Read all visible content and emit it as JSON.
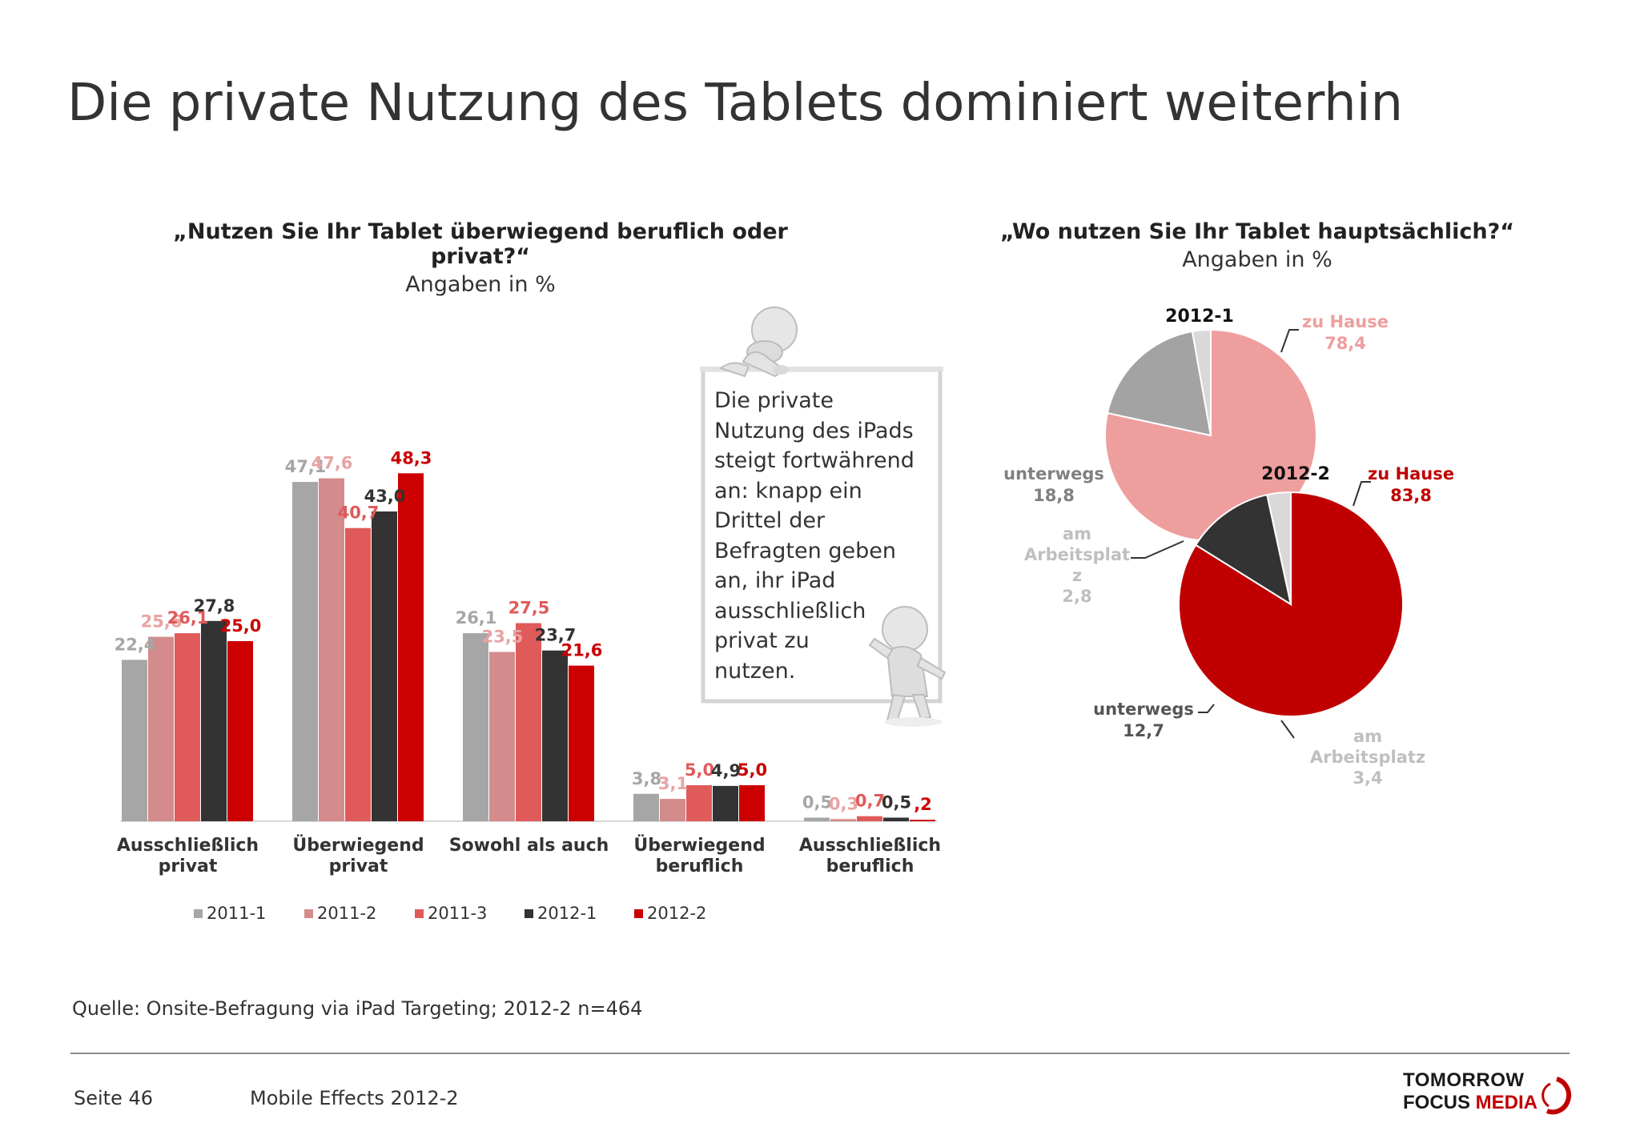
{
  "title": "Die private Nutzung des Tablets dominiert weiterhin",
  "colors": {
    "2011-1": "#a6a6a6",
    "2011-2": "#d48b8b",
    "2011-3": "#e05a5a",
    "2012-1": "#333333",
    "2012-2": "#cc0000",
    "pie_2012_1_home": "#ef9e9e",
    "pie_2012_2_home": "#c00000",
    "pie_2012_1_mobile": "#a3a3a3",
    "pie_2012_2_mobile": "#333333",
    "pie_work": "#d9d9d9"
  },
  "bar_chart": {
    "question": "„Nutzen Sie Ihr Tablet überwiegend beruflich oder privat?“",
    "unit": "Angaben in %"
  },
  "pie_charts": {
    "question": "„Wo nutzen Sie Ihr Tablet hauptsächlich?“",
    "unit": "Angaben in %"
  },
  "chart_data": [
    {
      "type": "bar",
      "categories": [
        [
          "Ausschließlich",
          "privat"
        ],
        [
          "Überwiegend",
          "privat"
        ],
        [
          "Sowohl als auch"
        ],
        [
          "Überwiegend",
          "beruflich"
        ],
        [
          "Ausschließlich",
          "beruflich"
        ]
      ],
      "series": [
        {
          "name": "2011-1",
          "values": [
            22.4,
            47.1,
            26.1,
            3.8,
            0.5
          ],
          "labels": [
            "22,4",
            "47,1",
            "26,1",
            "3,8",
            "0,5"
          ]
        },
        {
          "name": "2011-2",
          "values": [
            25.6,
            47.6,
            23.5,
            3.1,
            0.3
          ],
          "labels": [
            "25,6",
            "47,6",
            "23,5",
            "3,1",
            "0,3"
          ]
        },
        {
          "name": "2011-3",
          "values": [
            26.1,
            40.7,
            27.5,
            5.0,
            0.7
          ],
          "labels": [
            "26,1",
            "40,7",
            "27,5",
            "5,0",
            "0,7"
          ]
        },
        {
          "name": "2012-1",
          "values": [
            27.8,
            43.0,
            23.7,
            4.9,
            0.5
          ],
          "labels": [
            "27,8",
            "43,0",
            "23,7",
            "4,9",
            "0,5"
          ]
        },
        {
          "name": "2012-2",
          "values": [
            25.0,
            48.3,
            21.6,
            5.0,
            0.2
          ],
          "labels": [
            "25,0",
            "48,3",
            "21,6",
            "5,0",
            ",2"
          ]
        }
      ],
      "ylim": [
        0,
        52
      ],
      "legend": "bottom",
      "grid": false
    },
    {
      "type": "pie",
      "title": "2012-1",
      "slices": [
        {
          "label": "zu Hause",
          "value": 78.4,
          "value_label": "78,4"
        },
        {
          "label": "unterwegs",
          "value": 18.8,
          "value_label": "18,8"
        },
        {
          "label": [
            "am",
            "Arbeitsplat",
            "z"
          ],
          "value": 2.8,
          "value_label": "2,8"
        }
      ]
    },
    {
      "type": "pie",
      "title": "2012-2",
      "slices": [
        {
          "label": "zu Hause",
          "value": 83.8,
          "value_label": "83,8"
        },
        {
          "label": "unterwegs",
          "value": 12.7,
          "value_label": "12,7"
        },
        {
          "label": [
            "am",
            "Arbeitsplatz"
          ],
          "value": 3.4,
          "value_label": "3,4"
        }
      ]
    }
  ],
  "note": [
    "Die private",
    "Nutzung des iPads",
    "steigt fortwährend",
    "an: knapp ein",
    "Drittel der",
    "Befragten geben",
    "an, ihr iPad",
    "ausschließlich",
    "privat zu",
    "nutzen."
  ],
  "source": "Quelle: Onsite-Befragung via iPad Targeting; 2012-2 n=464",
  "footer": {
    "page": "Seite 46",
    "study": "Mobile Effects 2012-2",
    "logo_line1": "TOMORROW",
    "logo_line2a": "FOCUS",
    "logo_line2b": "MEDIA"
  }
}
